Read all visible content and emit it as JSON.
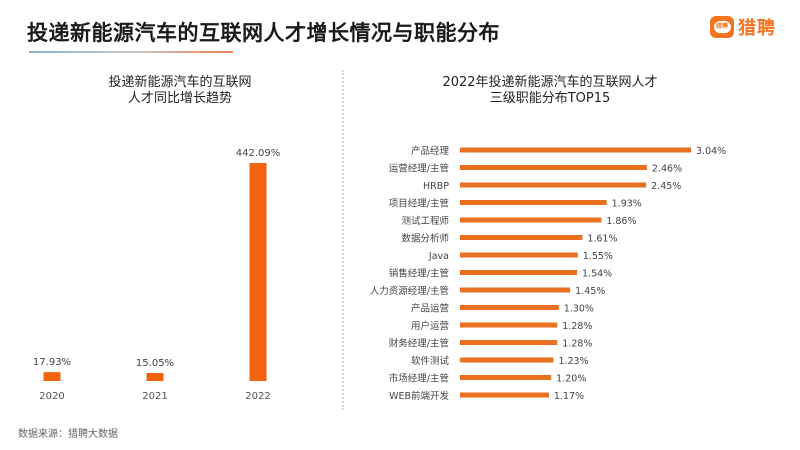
{
  "header": {
    "title": "投递新能源汽车的互联网人才增长情况与职能分布",
    "logo_badge_text": "猎聘",
    "logo_text": "猎聘",
    "brand_color": "#f47521"
  },
  "left_panel": {
    "subtitle_line1": "投递新能源汽车的互联网",
    "subtitle_line2": "人才同比增长趋势"
  },
  "right_panel": {
    "subtitle_line1": "2022年投递新能源汽车的互联网人才",
    "subtitle_line2": "三级职能分布TOP15"
  },
  "footer": {
    "source": "数据来源：猎聘大数据"
  },
  "chart_data": [
    {
      "type": "bar",
      "orientation": "vertical",
      "title": "投递新能源汽车的互联网人才同比增长趋势",
      "categories": [
        "2020",
        "2021",
        "2022"
      ],
      "values": [
        17.93,
        15.05,
        442.09
      ],
      "data_labels": [
        "17.93%",
        "15.05%",
        "442.09%"
      ],
      "unit": "%",
      "xlabel": "",
      "ylabel": "",
      "ylim": [
        0,
        442.09
      ],
      "grid": false,
      "legend": "none",
      "bar_color": "#f4620f"
    },
    {
      "type": "bar",
      "orientation": "horizontal",
      "title": "2022年投递新能源汽车的互联网人才三级职能分布TOP15",
      "categories": [
        "产品经理",
        "运营经理/主管",
        "HRBP",
        "项目经理/主管",
        "测试工程师",
        "数据分析师",
        "Java",
        "销售经理/主管",
        "人力资源经理/主管",
        "产品运营",
        "用户运营",
        "财务经理/主管",
        "软件测试",
        "市场经理/主管",
        "WEB前端开发"
      ],
      "values": [
        3.04,
        2.46,
        2.45,
        1.93,
        1.86,
        1.61,
        1.55,
        1.54,
        1.45,
        1.3,
        1.28,
        1.28,
        1.23,
        1.2,
        1.17
      ],
      "data_labels": [
        "3.04%",
        "2.46%",
        "2.45%",
        "1.93%",
        "1.86%",
        "1.61%",
        "1.55%",
        "1.54%",
        "1.45%",
        "1.30%",
        "1.28%",
        "1.28%",
        "1.23%",
        "1.20%",
        "1.17%"
      ],
      "unit": "%",
      "xlabel": "",
      "ylabel": "",
      "xlim": [
        0,
        3.04
      ],
      "grid": false,
      "legend": "none",
      "bar_color": "#e8701f"
    }
  ]
}
